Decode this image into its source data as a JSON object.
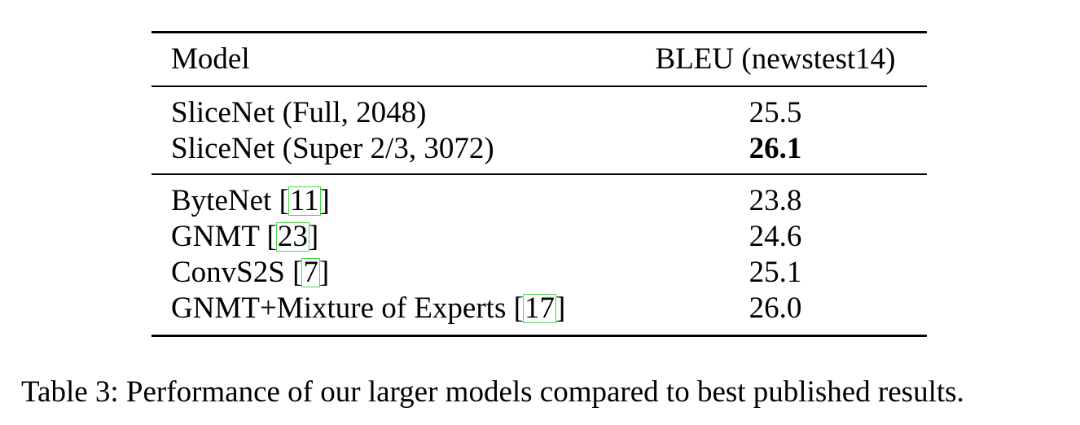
{
  "table": {
    "headers": {
      "model": "Model",
      "score": "BLEU (newstest14)"
    },
    "group1": [
      {
        "model": "SliceNet (Full, 2048)",
        "score": "25.5",
        "bold": false
      },
      {
        "model": "SliceNet (Super 2/3, 3072)",
        "score": "26.1",
        "bold": true
      }
    ],
    "group2": [
      {
        "model": "ByteNet",
        "cite": "11",
        "score": "23.8"
      },
      {
        "model": "GNMT",
        "cite": "23",
        "score": "24.6"
      },
      {
        "model": "ConvS2S",
        "cite": "7",
        "score": "25.1"
      },
      {
        "model": "GNMT+Mixture of Experts",
        "cite": "17",
        "score": "26.0"
      }
    ]
  },
  "caption": "Table 3: Performance of our larger models compared to best published results.",
  "colors": {
    "cite_box": "#4cd64c",
    "text": "#000000"
  }
}
